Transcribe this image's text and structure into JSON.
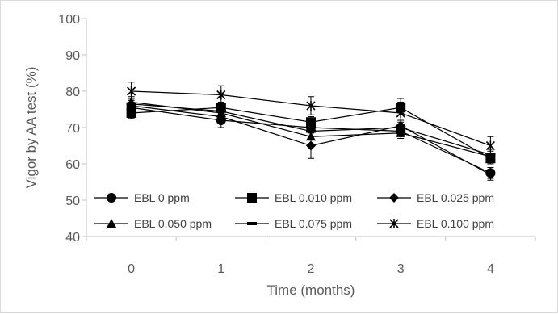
{
  "chart_data": {
    "type": "line",
    "title": "",
    "xlabel": "Time (months)",
    "ylabel": "Vigor by AA test (%)",
    "categories": [
      "0",
      "1",
      "2",
      "3",
      "4"
    ],
    "ylim": [
      40,
      100
    ],
    "yticks": [
      "40",
      "50",
      "60",
      "70",
      "80",
      "90",
      "100"
    ],
    "grid": false,
    "legend_position": "inside-bottom",
    "series_color": "#000000",
    "series": [
      {
        "name": "EBL 0 ppm",
        "marker": "circle",
        "values": [
          75.5,
          72,
          70,
          69,
          57.5
        ],
        "errors": [
          1.5,
          2,
          1.5,
          1.5,
          1.5
        ]
      },
      {
        "name": "EBL 0.010 ppm",
        "marker": "square",
        "values": [
          74,
          75.5,
          71.5,
          75.5,
          61.5
        ],
        "errors": [
          1.5,
          1.5,
          1.5,
          1.5,
          1.5
        ]
      },
      {
        "name": "EBL 0.025 ppm",
        "marker": "diamond",
        "values": [
          76,
          73,
          65,
          70.5,
          57
        ],
        "errors": [
          1.5,
          1.5,
          3.5,
          1.5,
          1.5
        ]
      },
      {
        "name": "EBL 0.050 ppm",
        "marker": "triangle",
        "values": [
          77,
          74,
          67.5,
          68.5,
          62
        ],
        "errors": [
          1.5,
          1.5,
          2,
          1.5,
          1.5
        ]
      },
      {
        "name": "EBL 0.075 ppm",
        "marker": "dash",
        "values": [
          76.5,
          74.5,
          69,
          70,
          62.5
        ],
        "errors": [
          1.5,
          1.5,
          1.5,
          1.5,
          1.5
        ]
      },
      {
        "name": "EBL 0.100 ppm",
        "marker": "star",
        "values": [
          80,
          79,
          76,
          74,
          65
        ],
        "errors": [
          2.5,
          2.5,
          2.5,
          4,
          2.5
        ]
      }
    ]
  }
}
